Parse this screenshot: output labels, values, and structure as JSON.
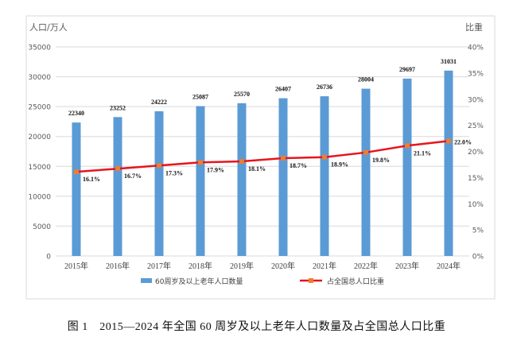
{
  "chart_data": {
    "type": "bar+line",
    "categories": [
      "2015年",
      "2016年",
      "2017年",
      "2018年",
      "2019年",
      "2020年",
      "2021年",
      "2022年",
      "2023年",
      "2024年"
    ],
    "series": [
      {
        "name": "60周岁及以上老年人口数量",
        "type": "bar",
        "axis": "left",
        "color": "#5b9bd5",
        "values": [
          22340,
          23252,
          24222,
          25087,
          25570,
          26407,
          26736,
          28004,
          29697,
          31031
        ],
        "labels": [
          "22340",
          "23252",
          "24222",
          "25087",
          "25570",
          "26407",
          "26736",
          "28004",
          "29697",
          "31031"
        ]
      },
      {
        "name": "占全国总人口比重",
        "type": "line",
        "axis": "right",
        "color": "#e8141c",
        "marker_color": "#ed7d31",
        "values": [
          16.1,
          16.7,
          17.3,
          17.9,
          18.1,
          18.7,
          18.9,
          19.8,
          21.1,
          22.0
        ],
        "labels": [
          "16.1%",
          "16.7%",
          "17.3%",
          "17.9%",
          "18.1%",
          "18.7%",
          "18.9%",
          "19.8%",
          "21.1%",
          "22.0%"
        ]
      }
    ],
    "ylabel_left": "人口/万人",
    "ylabel_right": "比重",
    "ylim_left": [
      0,
      35000
    ],
    "yticks_left": [
      "0",
      "5000",
      "10000",
      "15000",
      "20000",
      "25000",
      "30000",
      "35000"
    ],
    "ylim_right": [
      0,
      40
    ],
    "yticks_right": [
      "0%",
      "5%",
      "10%",
      "15%",
      "20%",
      "25%",
      "30%",
      "35%",
      "40%"
    ],
    "grid": true,
    "legend": "bottom"
  },
  "caption": "图 1　2015—2024 年全国 60 周岁及以上老年人口数量及占全国总人口比重"
}
